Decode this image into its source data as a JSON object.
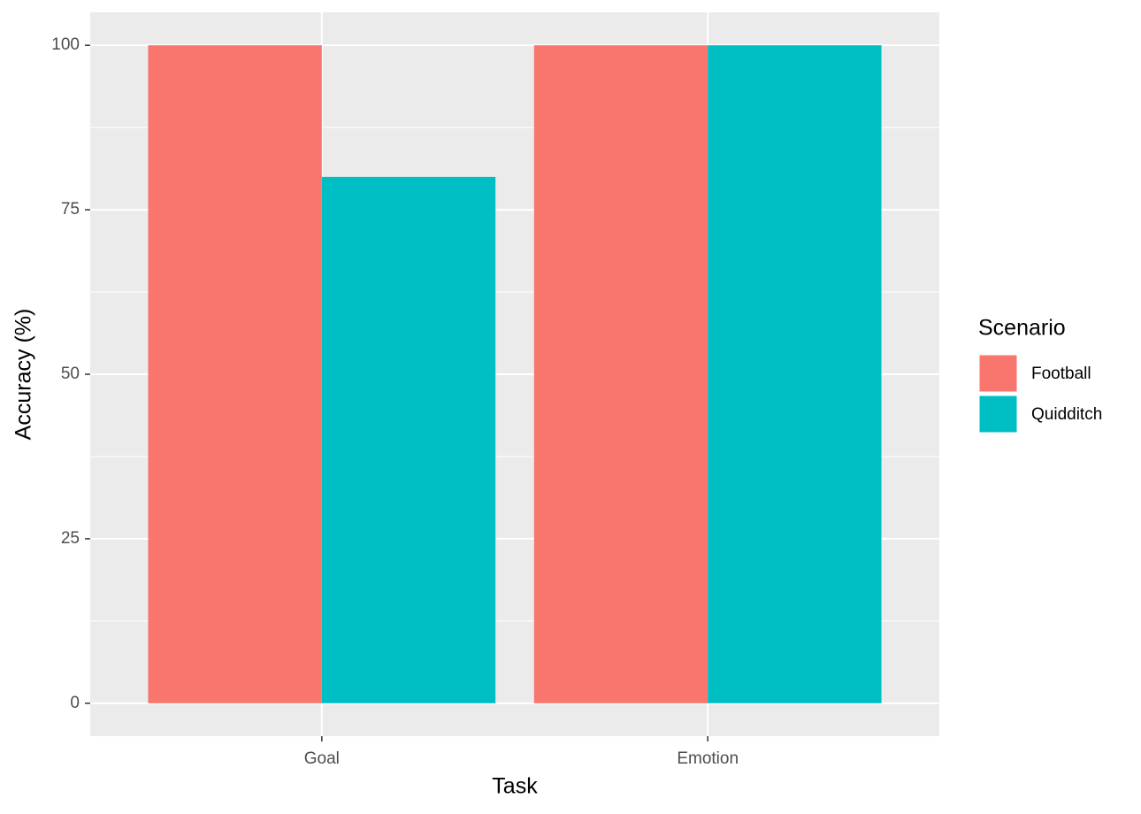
{
  "chart_data": {
    "type": "bar",
    "x_label": "Task",
    "y_label": "Accuracy (%)",
    "categories": [
      "Goal",
      "Emotion"
    ],
    "series": [
      {
        "name": "Football",
        "color": "#F8766D",
        "values": [
          100,
          100
        ]
      },
      {
        "name": "Quidditch",
        "color": "#00BFC4",
        "values": [
          80,
          100
        ]
      }
    ],
    "legend_title": "Scenario",
    "legend_position": "right",
    "ylim": [
      -5,
      105
    ],
    "yticks": [
      0,
      25,
      50,
      75,
      100
    ],
    "grid": true
  }
}
